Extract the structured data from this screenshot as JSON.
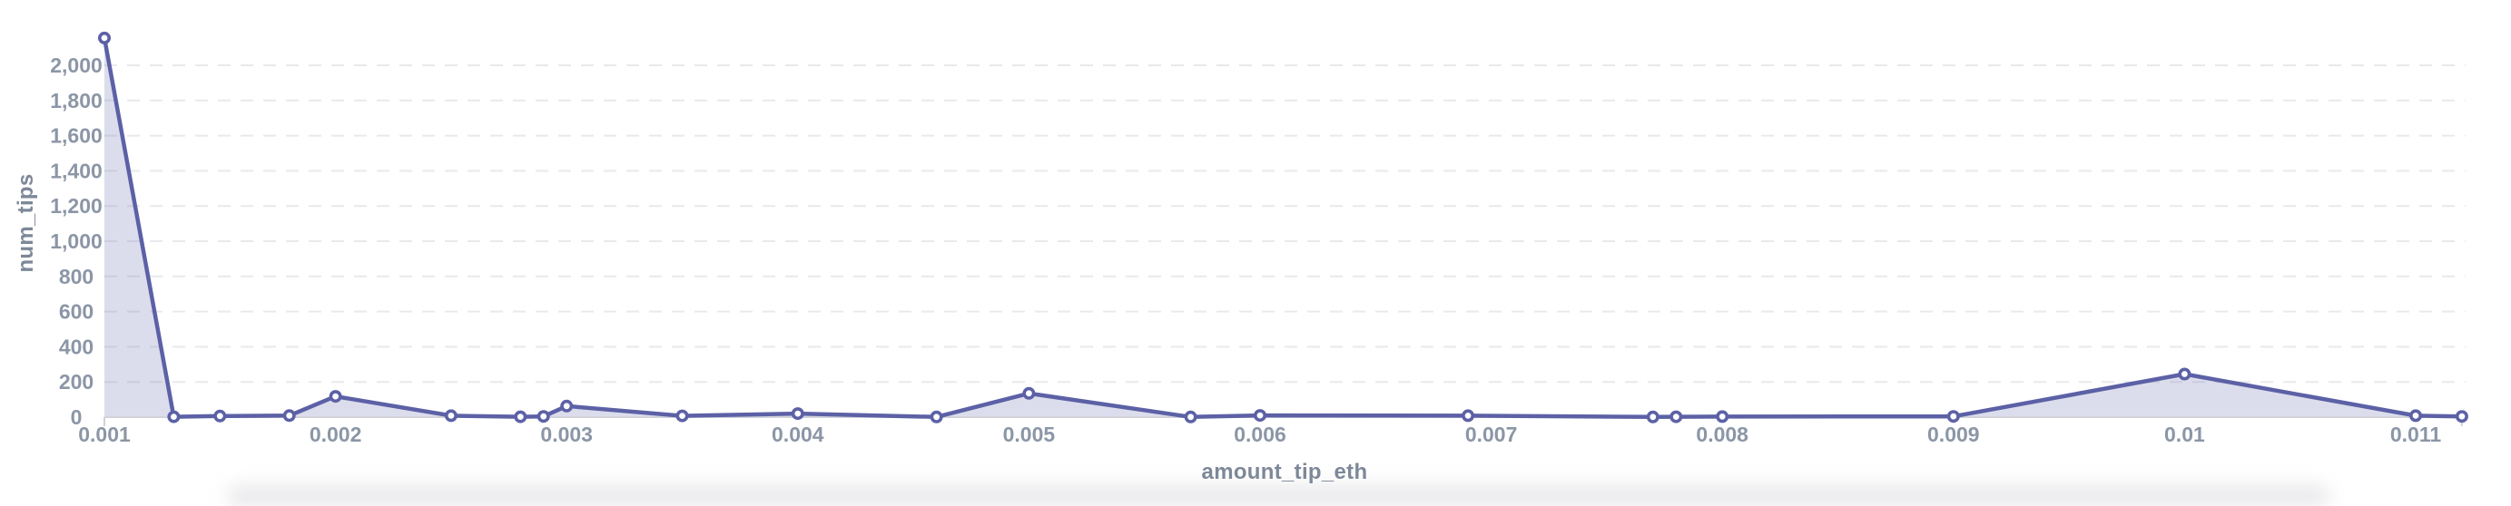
{
  "chart_data": {
    "type": "area",
    "title": "",
    "xlabel": "amount_tip_eth",
    "ylabel": "num_tips",
    "x": [
      0.001,
      0.0013,
      0.0015,
      0.0018,
      0.002,
      0.0025,
      0.0028,
      0.0029,
      0.003,
      0.0035,
      0.004,
      0.0046,
      0.005,
      0.0057,
      0.006,
      0.0069,
      0.0077,
      0.0078,
      0.008,
      0.009,
      0.01,
      0.011,
      0.0112
    ],
    "y": [
      2155,
      2,
      6,
      9,
      118,
      8,
      2,
      4,
      63,
      7,
      20,
      1,
      135,
      1,
      10,
      8,
      1,
      2,
      3,
      4,
      245,
      8,
      4
    ],
    "x_ticks": [
      0.001,
      0.002,
      0.003,
      0.004,
      0.005,
      0.006,
      0.007,
      0.008,
      0.009,
      0.01,
      0.011
    ],
    "x_tick_labels": [
      "0.001",
      "0.002",
      "0.003",
      "0.004",
      "0.005",
      "0.006",
      "0.007",
      "0.008",
      "0.009",
      "0.01",
      "0.011"
    ],
    "y_ticks": [
      0,
      200,
      400,
      600,
      800,
      1000,
      1200,
      1400,
      1600,
      1800,
      2000
    ],
    "y_tick_labels": [
      "0",
      "200",
      "400",
      "600",
      "800",
      "1,000",
      "1,200",
      "1,400",
      "1,600",
      "1,800",
      "2,000"
    ],
    "xlim": [
      0.001,
      0.0113
    ],
    "ylim": [
      0,
      2270
    ],
    "grid": "horizontal-dashed",
    "legend": "none",
    "marker": "circle-open",
    "colors": {
      "line": "#5c61a6",
      "fill": "rgba(95,100,170,0.22)",
      "marker_fill": "#ffffff",
      "grid": "#e9e9ed",
      "axis": "#d2d3da",
      "tick_label": "#8b96a6",
      "axis_title": "#7d8898",
      "page_bg": "#ffffff",
      "bottom_band": "#e7e7ea"
    }
  }
}
